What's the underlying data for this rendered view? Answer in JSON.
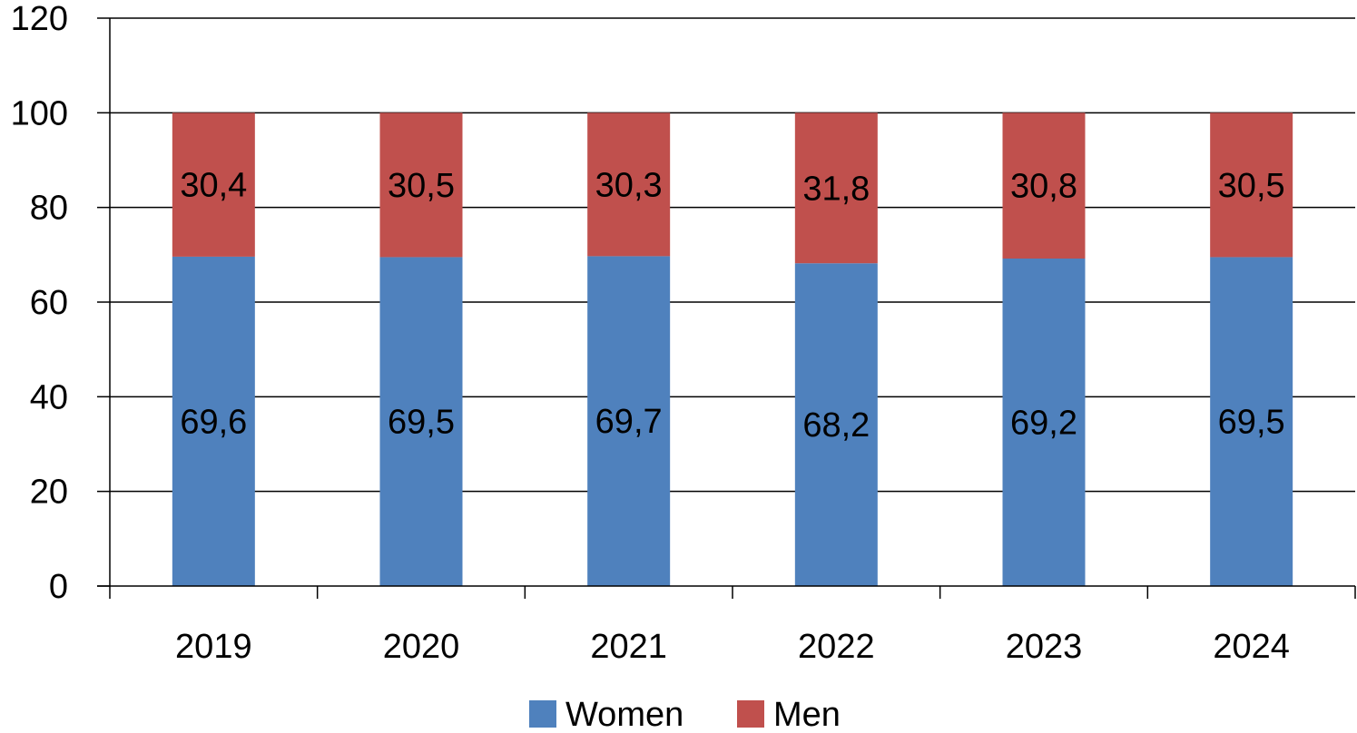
{
  "chart_data": {
    "type": "bar",
    "stacked": true,
    "categories": [
      "2019",
      "2020",
      "2021",
      "2022",
      "2023",
      "2024"
    ],
    "series": [
      {
        "name": "Women",
        "values": [
          69.6,
          69.5,
          69.7,
          68.2,
          69.2,
          69.5
        ],
        "labels": [
          "69,6",
          "69,5",
          "69,7",
          "68,2",
          "69,2",
          "69,5"
        ],
        "color": "#4F81BD"
      },
      {
        "name": "Men",
        "values": [
          30.4,
          30.5,
          30.3,
          31.8,
          30.8,
          30.5
        ],
        "labels": [
          "30,4",
          "30,5",
          "30,3",
          "31,8",
          "30,8",
          "30,5"
        ],
        "color": "#C0504D"
      }
    ],
    "ylim": [
      0,
      120
    ],
    "yticks": [
      0,
      20,
      40,
      60,
      80,
      100,
      120
    ],
    "grid": true,
    "legend": "bottom",
    "title": "",
    "xlabel": "",
    "ylabel": ""
  }
}
